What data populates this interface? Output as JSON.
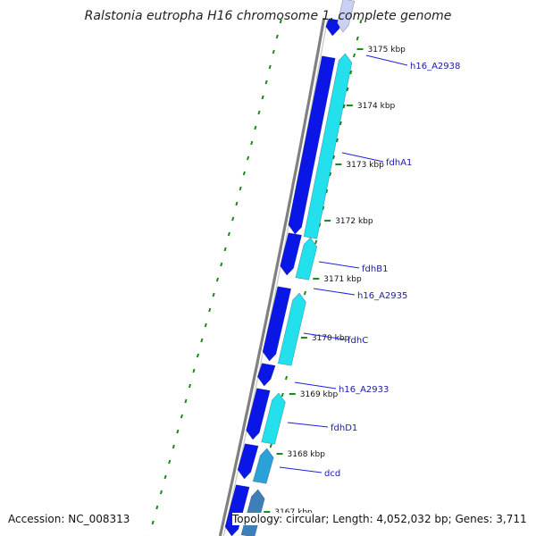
{
  "title": "Ralstonia eutropha H16 chromosome 1, complete genome",
  "footer": {
    "accession": "Accession: NC_008313",
    "summary": "Topology: circular; Length: 4,052,032 bp; Genes: 3,711"
  },
  "colors": {
    "backbone": "#808080",
    "forward_cds": "#0a16e6",
    "reverse_cds": "#22e0ec",
    "reverse_cds_alt": "#2aa2d8",
    "gene_label": "#1a1aa8",
    "label_line": "#2020e0",
    "gc_dots": "#1a8a1a"
  },
  "ticks": [
    {
      "label": "3175 kbp"
    },
    {
      "label": "3174 kbp"
    },
    {
      "label": "3173 kbp"
    },
    {
      "label": "3172 kbp"
    },
    {
      "label": "3171 kbp"
    },
    {
      "label": "3170 kbp"
    },
    {
      "label": "3169 kbp"
    },
    {
      "label": "3168 kbp"
    },
    {
      "label": "3167 kbp"
    }
  ],
  "genes": [
    {
      "name": "h16_A2938"
    },
    {
      "name": "fdhA1"
    },
    {
      "name": "fdhB1"
    },
    {
      "name": "h16_A2935"
    },
    {
      "name": "fdhC"
    },
    {
      "name": "h16_A2933"
    },
    {
      "name": "fdhD1"
    },
    {
      "name": "dcd"
    }
  ]
}
